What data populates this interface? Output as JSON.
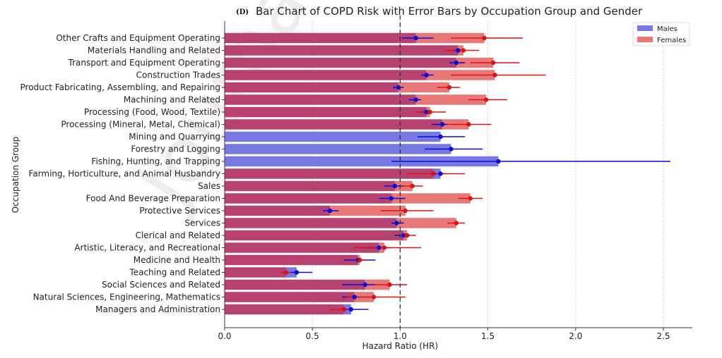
{
  "chart_data": {
    "type": "bar",
    "orientation": "horizontal",
    "panel_label": "(D)",
    "title": "Bar Chart of COPD Risk with Error Bars by Occupation Group and Gender",
    "xlabel": "Hazard Ratio (HR)",
    "ylabel": "Occupation Group",
    "xlim": [
      0,
      2.66
    ],
    "xticks": [
      "0.0",
      "0.5",
      "1.0",
      "1.5",
      "2.0",
      "2.5"
    ],
    "reference_line": 1.0,
    "grid": "vertical dotted",
    "legend": {
      "position": "top-right",
      "entries": [
        "Males",
        "Females"
      ]
    },
    "colors": {
      "males": "#7878e2",
      "females": "#e87878",
      "overlap": "#b5426f",
      "male_point": "#0a0adc",
      "female_point": "#e01010"
    },
    "watermark": "Journal Pre-proof",
    "categories": [
      "Other Crafts and Equipment Operating",
      "Materials Handling and Related",
      "Transport and Equipment Operating",
      "Construction Trades",
      "Product Fabricating, Assembling, and Repairing",
      "Machining and Related",
      "Processing (Food, Wood, Textile)",
      "Processing (Mineral, Metal, Chemical)",
      "Mining and Quarrying",
      "Forestry and Logging",
      "Fishing, Hunting, and Trapping",
      "Farming, Horticulture, and Animal Husbandry",
      "Sales",
      "Food And Beverage Preparation",
      "Protective Services",
      "Services",
      "Clerical and Related",
      "Artistic, Literacy, and Recreational",
      "Medicine and Health",
      "Teaching and Related",
      "Social Sciences and Related",
      "Natural Sciences, Engineering, Mathematics",
      "Managers and Administration"
    ],
    "series": [
      {
        "name": "Males",
        "values": [
          1.09,
          1.33,
          1.32,
          1.15,
          0.99,
          1.09,
          1.15,
          1.24,
          1.23,
          1.29,
          1.56,
          1.23,
          0.97,
          0.95,
          0.6,
          0.98,
          1.02,
          0.88,
          0.76,
          0.41,
          0.8,
          0.74,
          0.72
        ],
        "ci_low": [
          1.01,
          1.29,
          1.28,
          1.12,
          0.96,
          1.05,
          1.12,
          1.18,
          1.1,
          1.14,
          0.95,
          1.2,
          0.91,
          0.88,
          0.56,
          0.95,
          0.97,
          0.8,
          0.68,
          0.37,
          0.67,
          0.67,
          0.68
        ],
        "ci_high": [
          1.19,
          1.37,
          1.37,
          1.19,
          1.02,
          1.12,
          1.18,
          1.27,
          1.37,
          1.47,
          2.54,
          1.26,
          1.02,
          1.03,
          0.65,
          1.02,
          1.05,
          0.95,
          0.86,
          0.5,
          0.86,
          0.78,
          0.82
        ]
      },
      {
        "name": "Females",
        "values": [
          1.48,
          1.36,
          1.53,
          1.54,
          1.28,
          1.49,
          1.17,
          1.39,
          null,
          null,
          null,
          1.19,
          1.07,
          1.4,
          1.03,
          1.32,
          1.04,
          0.91,
          0.77,
          0.35,
          0.94,
          0.85,
          0.68
        ],
        "ci_low": [
          1.29,
          1.26,
          1.4,
          1.29,
          1.21,
          1.39,
          1.09,
          1.27,
          null,
          null,
          null,
          1.04,
          1.01,
          1.33,
          0.89,
          1.27,
          1.0,
          0.74,
          0.75,
          0.32,
          0.86,
          0.69,
          0.6
        ],
        "ci_high": [
          1.7,
          1.45,
          1.68,
          1.83,
          1.34,
          1.61,
          1.26,
          1.52,
          null,
          null,
          null,
          1.37,
          1.13,
          1.47,
          1.19,
          1.37,
          1.09,
          1.12,
          0.81,
          0.38,
          1.04,
          1.03,
          0.72
        ]
      }
    ]
  }
}
